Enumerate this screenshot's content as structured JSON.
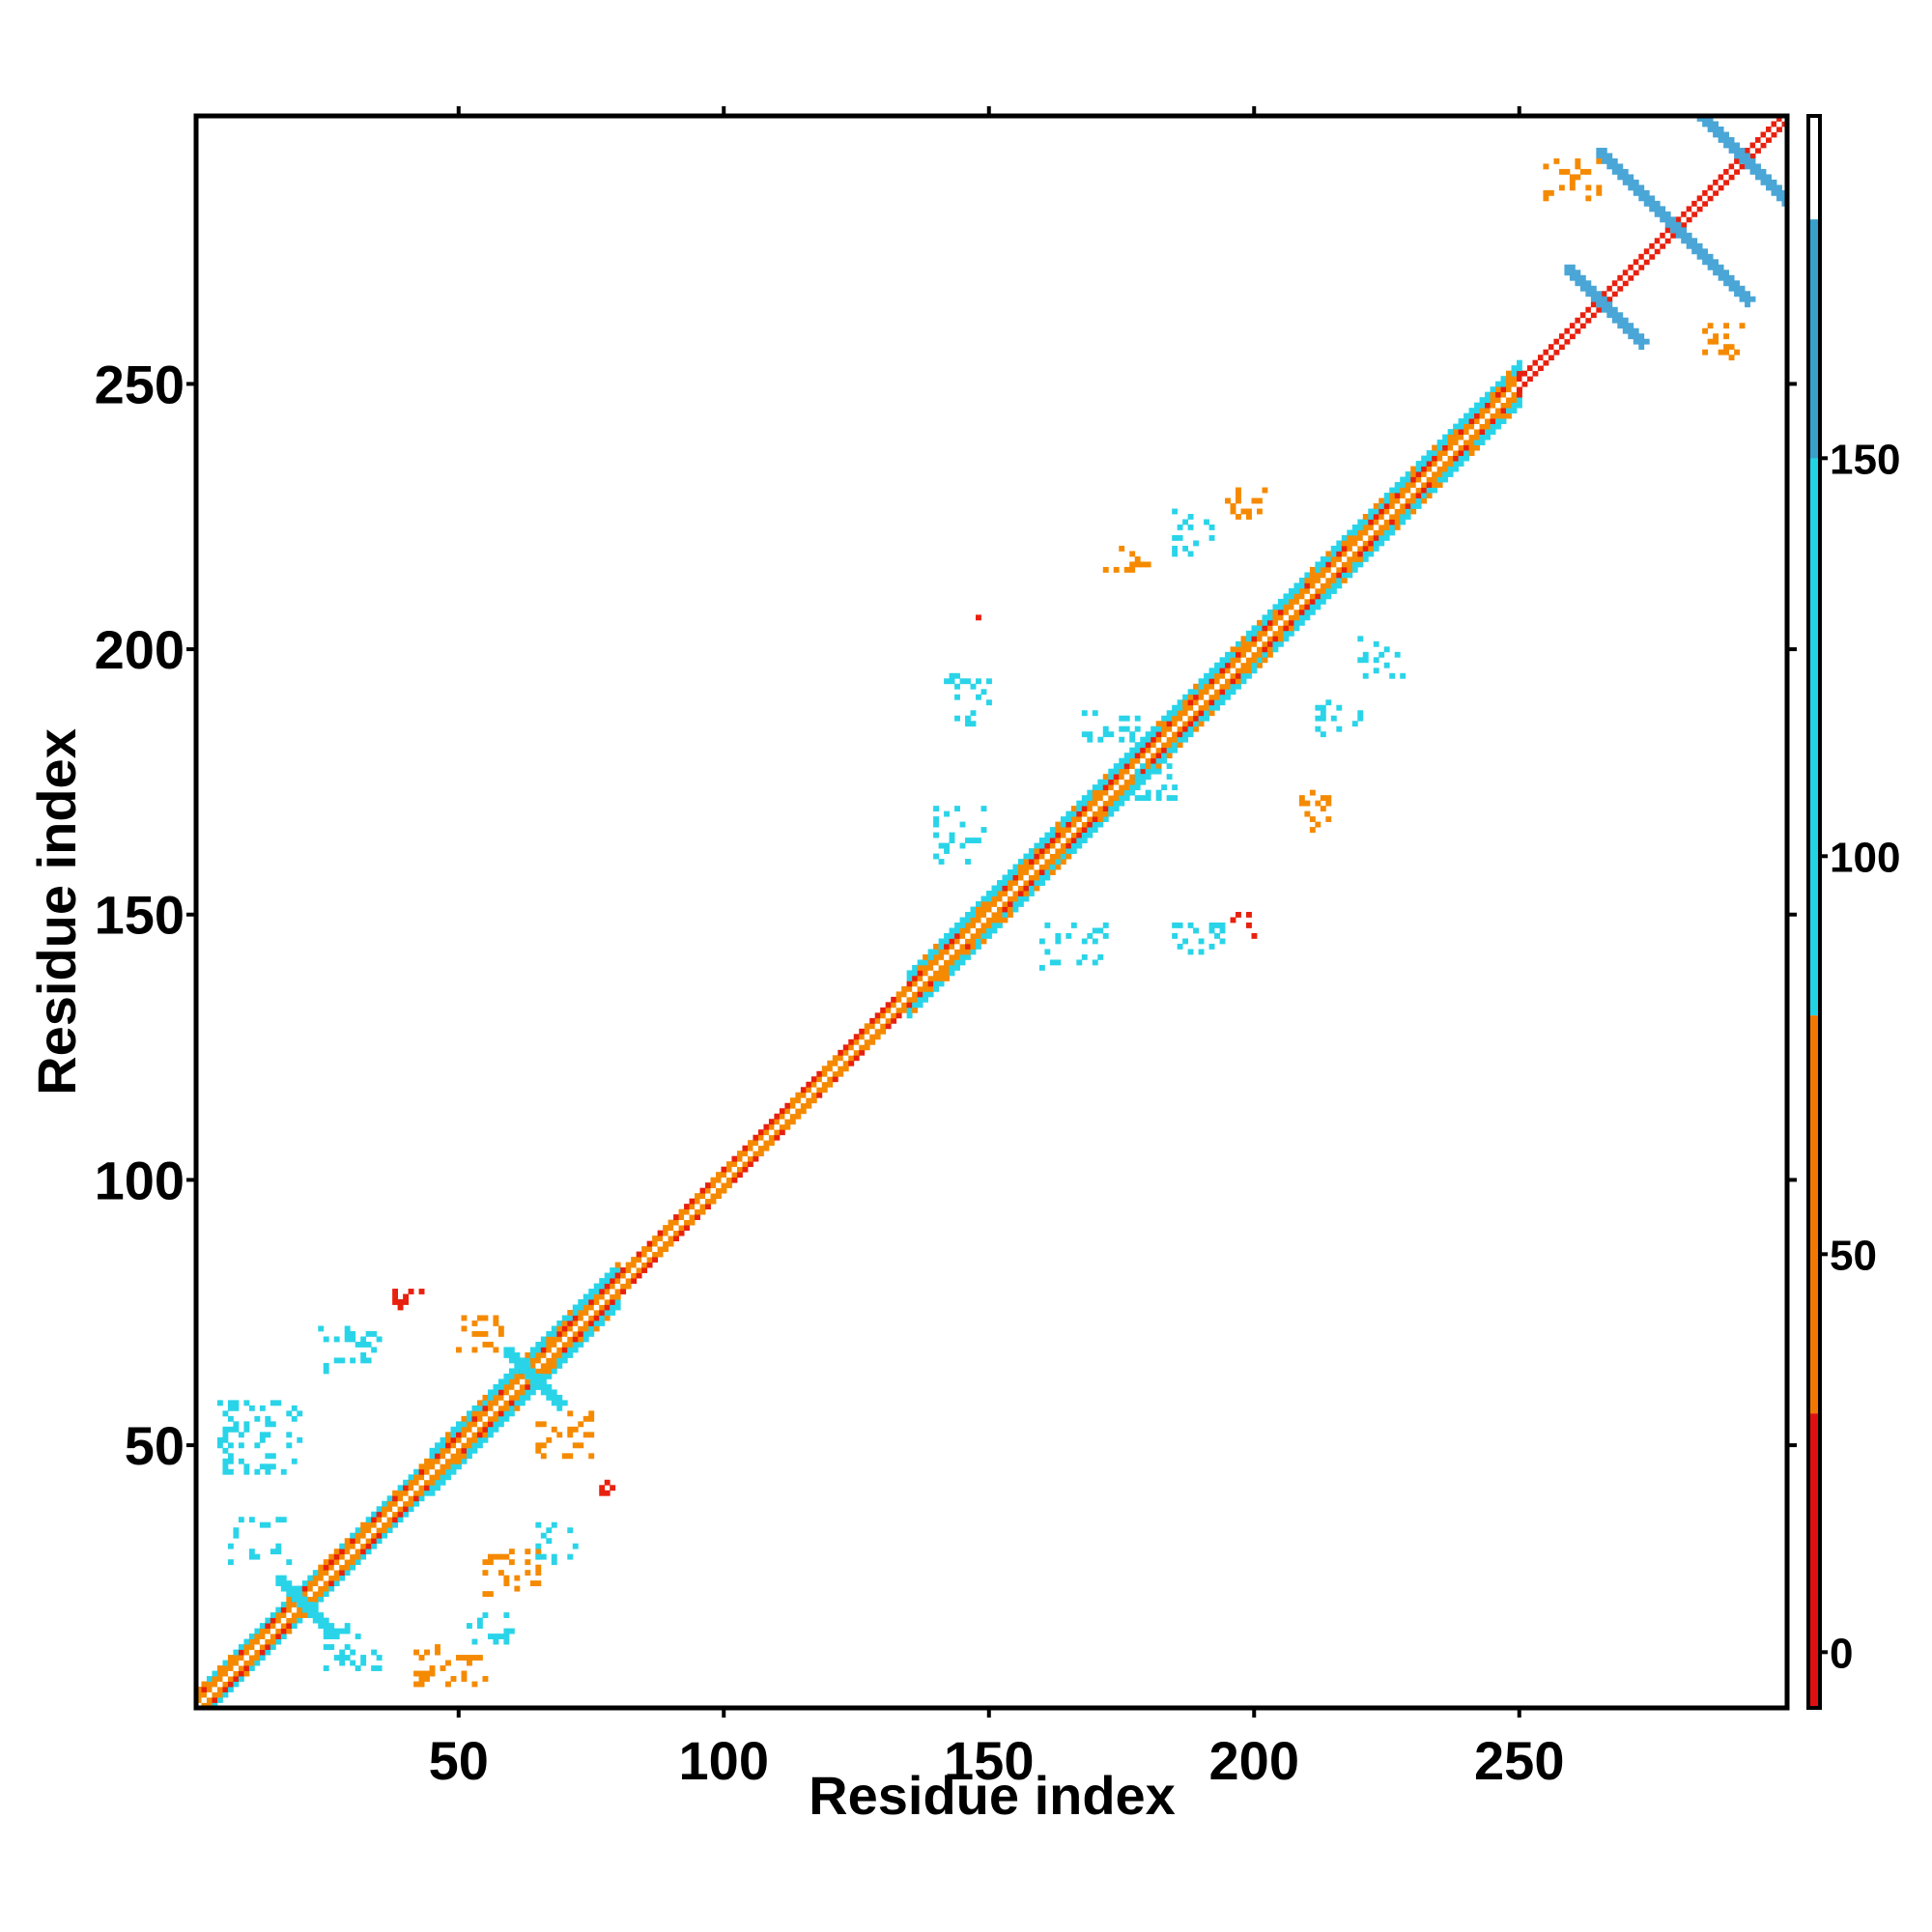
{
  "chart_data": {
    "type": "heatmap",
    "title": "",
    "xlabel": "Residue index",
    "ylabel": "Residue index",
    "xlim": [
      1,
      300
    ],
    "ylim": [
      1,
      300
    ],
    "x_ticks": [
      50,
      100,
      150,
      200,
      250
    ],
    "y_ticks": [
      50,
      100,
      150,
      200,
      250
    ],
    "colorbar": {
      "ticks": [
        0,
        50,
        100,
        150
      ],
      "range": [
        -7,
        193
      ],
      "bands": [
        {
          "from": -7,
          "to": 30,
          "color": "#e01010"
        },
        {
          "from": 30,
          "to": 80,
          "color": "#f07800"
        },
        {
          "from": 80,
          "to": 180,
          "color": "#22d3e6"
        },
        {
          "from": 180,
          "to": 193,
          "color": "#ffffff"
        }
      ],
      "top_shade": "#4a78b5"
    },
    "colors": {
      "red": "#e8200e",
      "orange": "#f58a00",
      "cyan": "#2ad4e8",
      "steel": "#4aa6d6",
      "white": "#ffffff"
    },
    "diagonal_segments": [
      {
        "from": 1,
        "to": 20,
        "width": 3,
        "color": "cyan"
      },
      {
        "from": 20,
        "to": 45,
        "width": 3,
        "color": "cyan"
      },
      {
        "from": 45,
        "to": 80,
        "width": 4,
        "color": "cyan"
      },
      {
        "from": 80,
        "to": 135,
        "width": 2,
        "color": "orange"
      },
      {
        "from": 135,
        "to": 160,
        "width": 4,
        "color": "cyan"
      },
      {
        "from": 160,
        "to": 215,
        "width": 4,
        "color": "cyan"
      },
      {
        "from": 215,
        "to": 250,
        "width": 4,
        "color": "cyan"
      },
      {
        "from": 250,
        "to": 300,
        "width": 1,
        "color": "red"
      }
    ],
    "cross_contacts": [
      {
        "center": [
          64,
          63
        ],
        "size": 5,
        "color": "cyan"
      },
      {
        "center": [
          21,
          20
        ],
        "size": 5,
        "color": "cyan"
      },
      {
        "center": [
          266,
          265
        ],
        "size": 7,
        "color": "steel"
      },
      {
        "center": [
          279,
          280
        ],
        "size": 14,
        "color": "steel"
      },
      {
        "center": [
          293,
          292
        ],
        "size": 10,
        "color": "steel"
      }
    ],
    "offdiag_clusters": [
      {
        "x": [
          5,
          20
        ],
        "y": [
          45,
          58
        ],
        "color": "cyan"
      },
      {
        "x": [
          22,
          35
        ],
        "y": [
          64,
          72
        ],
        "color": "cyan"
      },
      {
        "x": [
          38,
          44
        ],
        "y": [
          76,
          79
        ],
        "color": "red"
      },
      {
        "x": [
          50,
          58
        ],
        "y": [
          68,
          74
        ],
        "color": "orange"
      },
      {
        "x": [
          65,
          75
        ],
        "y": [
          48,
          56
        ],
        "color": "orange"
      },
      {
        "x": [
          75,
          80
        ],
        "y": [
          40,
          44
        ],
        "color": "red"
      },
      {
        "x": [
          7,
          18
        ],
        "y": [
          28,
          36
        ],
        "color": "cyan"
      },
      {
        "x": [
          25,
          35
        ],
        "y": [
          8,
          16
        ],
        "color": "cyan"
      },
      {
        "x": [
          42,
          55
        ],
        "y": [
          5,
          12
        ],
        "color": "orange"
      },
      {
        "x": [
          52,
          60
        ],
        "y": [
          13,
          18
        ],
        "color": "cyan"
      },
      {
        "x": [
          55,
          65
        ],
        "y": [
          22,
          30
        ],
        "color": "orange"
      },
      {
        "x": [
          65,
          72
        ],
        "y": [
          28,
          35
        ],
        "color": "cyan"
      },
      {
        "x": [
          140,
          150
        ],
        "y": [
          160,
          170
        ],
        "color": "cyan"
      },
      {
        "x": [
          142,
          150
        ],
        "y": [
          185,
          195
        ],
        "color": "cyan"
      },
      {
        "x": [
          148,
          150
        ],
        "y": [
          205,
          210
        ],
        "color": "red"
      },
      {
        "x": [
          160,
          172
        ],
        "y": [
          140,
          148
        ],
        "color": "cyan"
      },
      {
        "x": [
          185,
          195
        ],
        "y": [
          142,
          148
        ],
        "color": "cyan"
      },
      {
        "x": [
          195,
          200
        ],
        "y": [
          145,
          150
        ],
        "color": "red"
      },
      {
        "x": [
          172,
          180
        ],
        "y": [
          215,
          220
        ],
        "color": "orange"
      },
      {
        "x": [
          185,
          192
        ],
        "y": [
          218,
          226
        ],
        "color": "cyan"
      },
      {
        "x": [
          195,
          203
        ],
        "y": [
          225,
          230
        ],
        "color": "orange"
      },
      {
        "x": [
          165,
          178
        ],
        "y": [
          183,
          188
        ],
        "color": "cyan"
      },
      {
        "x": [
          178,
          185
        ],
        "y": [
          172,
          178
        ],
        "color": "cyan"
      },
      {
        "x": [
          208,
          214
        ],
        "y": [
          165,
          173
        ],
        "color": "orange"
      },
      {
        "x": [
          212,
          220
        ],
        "y": [
          184,
          190
        ],
        "color": "cyan"
      },
      {
        "x": [
          220,
          228
        ],
        "y": [
          195,
          202
        ],
        "color": "cyan"
      },
      {
        "x": [
          255,
          265
        ],
        "y": [
          285,
          292
        ],
        "color": "orange"
      },
      {
        "x": [
          285,
          292
        ],
        "y": [
          255,
          262
        ],
        "color": "orange"
      }
    ]
  }
}
